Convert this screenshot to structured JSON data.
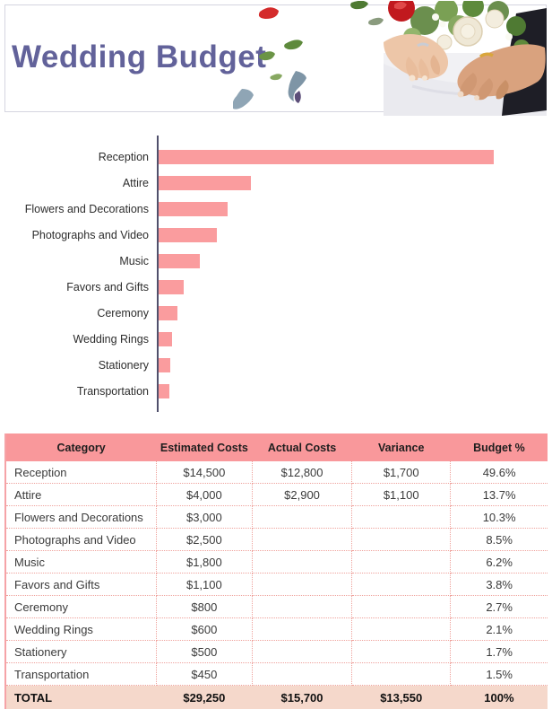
{
  "header": {
    "title": "Wedding Budget",
    "art": {
      "photo_description": "bride-and-groom-hands-with-rings-and-bouquet",
      "decor_description": "falling-rose-petals-and-leaves"
    }
  },
  "chart_data": {
    "type": "bar",
    "orientation": "horizontal",
    "title": "",
    "xlabel": "",
    "ylabel": "",
    "grid": false,
    "legend": false,
    "categories": [
      "Reception",
      "Attire",
      "Flowers and Decorations",
      "Photographs and Video",
      "Music",
      "Favors and Gifts",
      "Ceremony",
      "Wedding Rings",
      "Stationery",
      "Transportation"
    ],
    "values": [
      14500,
      4000,
      3000,
      2500,
      1800,
      1100,
      800,
      600,
      500,
      450
    ],
    "xlim": [
      0,
      16500
    ],
    "bar_color": "#FA9C9E",
    "axis_color": "#50506C"
  },
  "table": {
    "columns": [
      "Category",
      "Estimated Costs",
      "Actual Costs",
      "Variance",
      "Budget %"
    ],
    "rows": [
      [
        "Reception",
        "$14,500",
        "$12,800",
        "$1,700",
        "49.6%"
      ],
      [
        "Attire",
        "$4,000",
        "$2,900",
        "$1,100",
        "13.7%"
      ],
      [
        "Flowers and Decorations",
        "$3,000",
        "",
        "",
        "10.3%"
      ],
      [
        "Photographs and Video",
        "$2,500",
        "",
        "",
        "8.5%"
      ],
      [
        "Music",
        "$1,800",
        "",
        "",
        "6.2%"
      ],
      [
        "Favors and Gifts",
        "$1,100",
        "",
        "",
        "3.8%"
      ],
      [
        "Ceremony",
        "$800",
        "",
        "",
        "2.7%"
      ],
      [
        "Wedding Rings",
        "$600",
        "",
        "",
        "2.1%"
      ],
      [
        "Stationery",
        "$500",
        "",
        "",
        "1.7%"
      ],
      [
        "Transportation",
        "$450",
        "",
        "",
        "1.5%"
      ]
    ],
    "total_row": [
      "TOTAL",
      "$29,250",
      "$15,700",
      "$13,550",
      "100%"
    ]
  },
  "colors": {
    "title": "#62629A",
    "table_header_bg": "#F9989B",
    "total_row_bg": "#F5D8CB",
    "bar": "#FA9C9E",
    "axis": "#50506C",
    "dotted_border": "#EFA29C",
    "banner_border": "#D5D5E0"
  }
}
